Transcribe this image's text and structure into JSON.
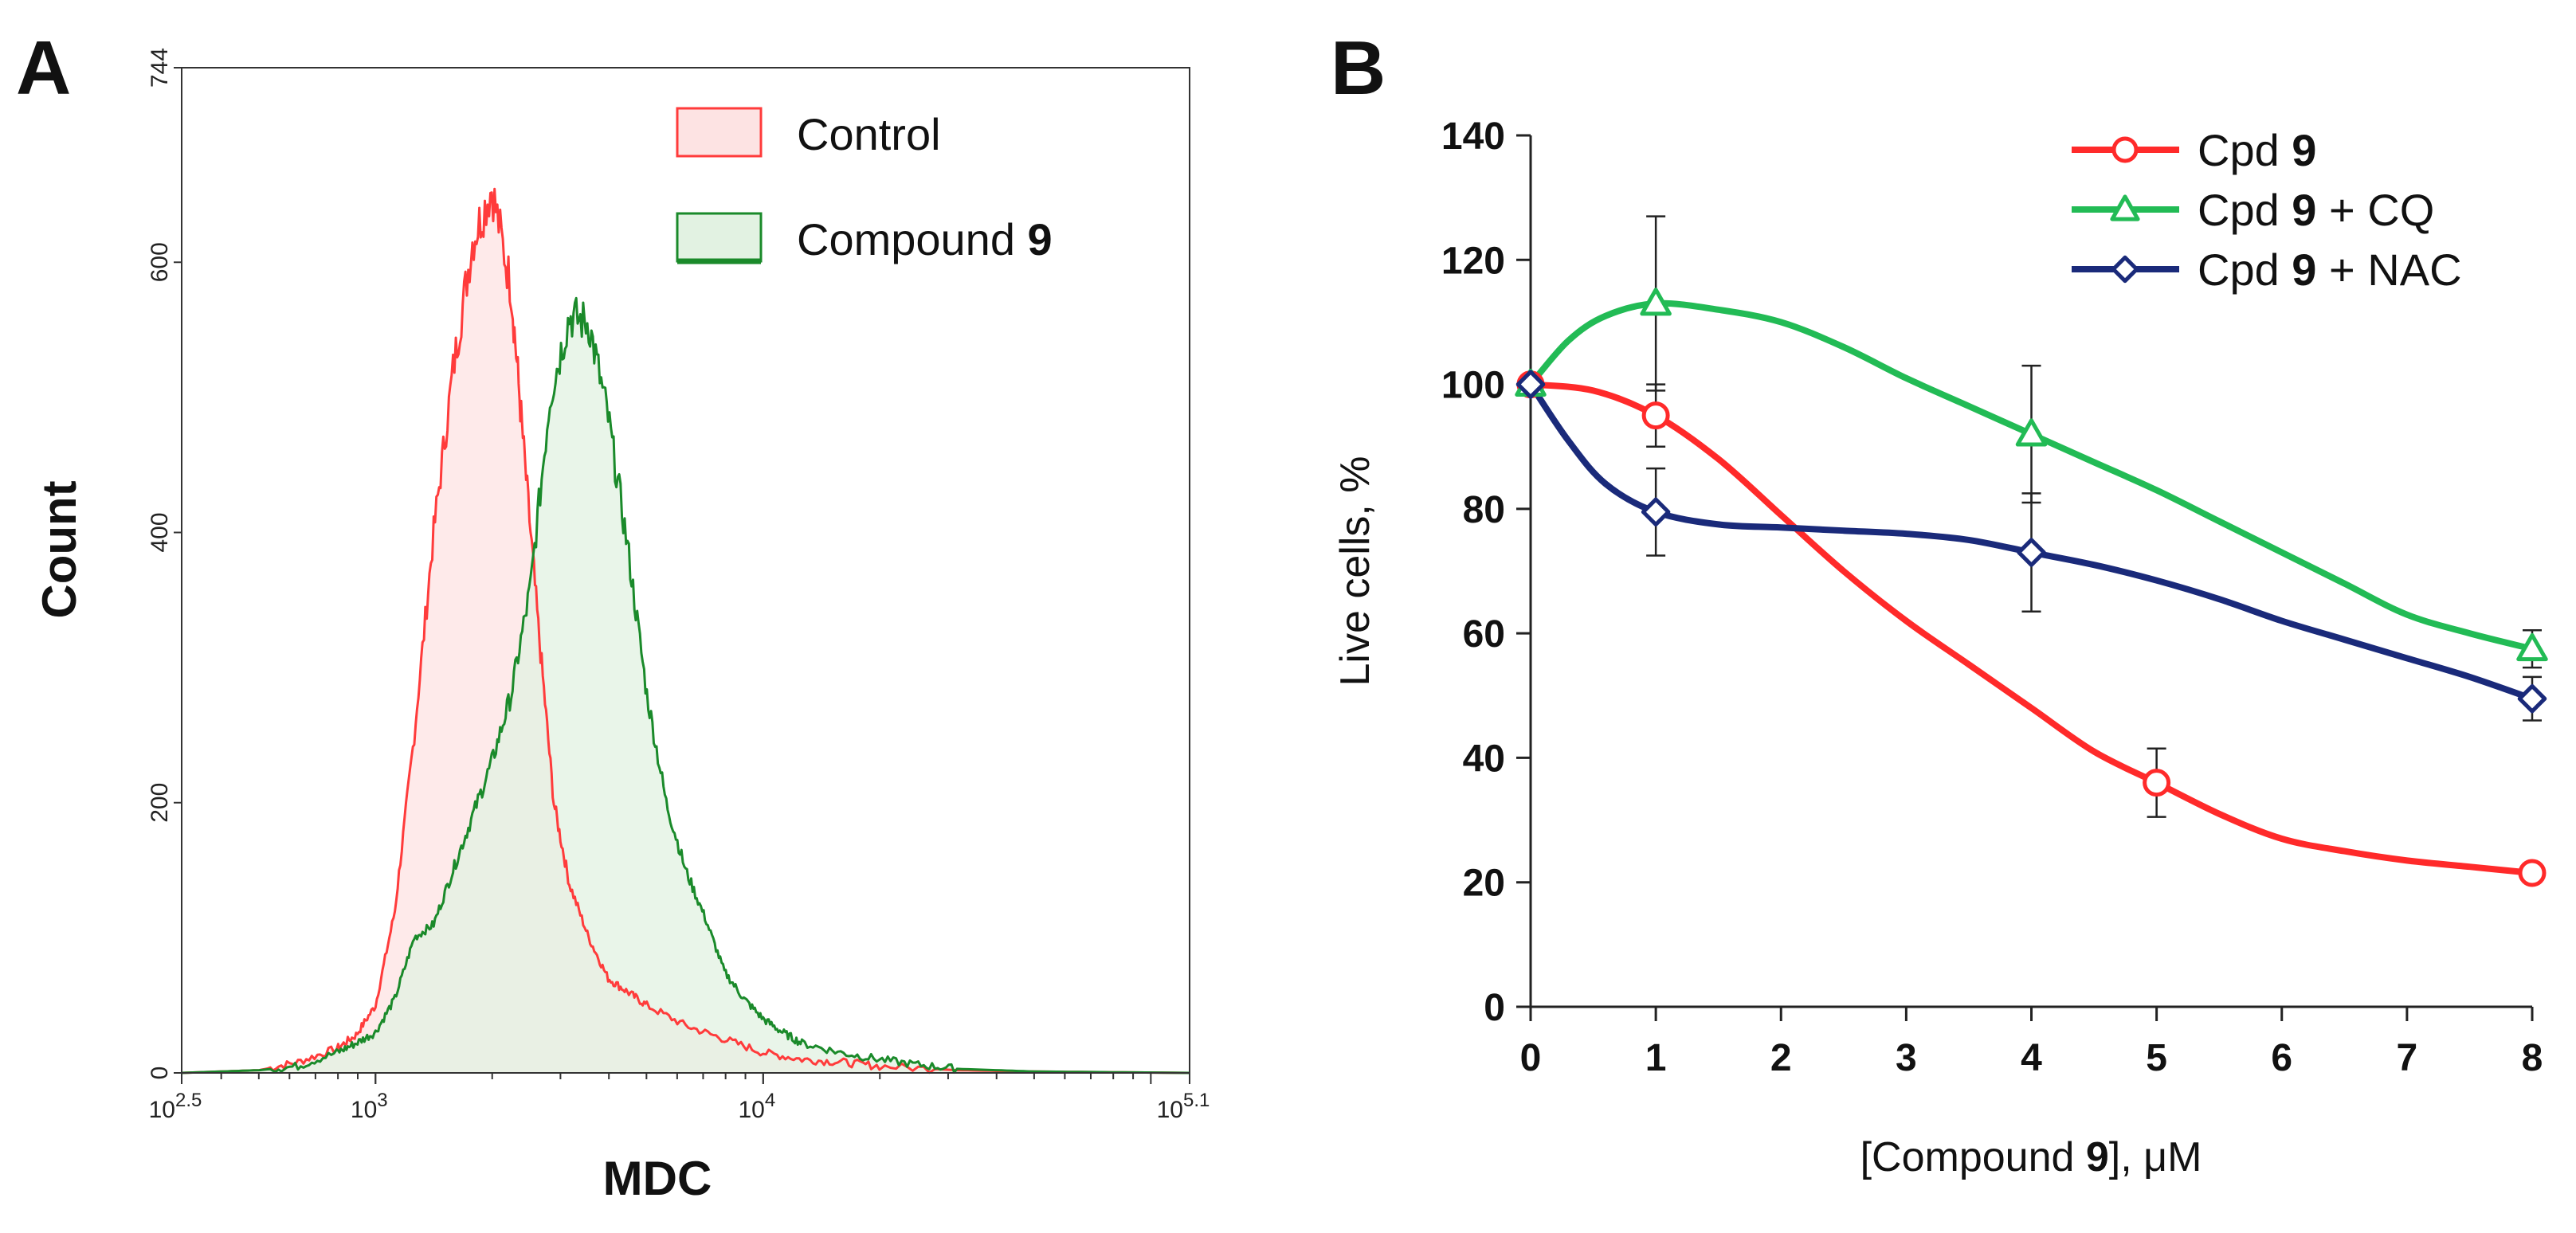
{
  "panels": {
    "a": {
      "letter": "A"
    },
    "b": {
      "letter": "B"
    }
  },
  "chart_data": [
    {
      "id": "A",
      "type": "area",
      "title": "",
      "xlabel": "MDC",
      "ylabel": "Count",
      "xscale": "log10",
      "xlim_log10": [
        2.5,
        5.1
      ],
      "ylim": [
        0,
        744
      ],
      "x_tick_labels": [
        {
          "base": "10",
          "exp": "2.5",
          "log10": 2.5
        },
        {
          "base": "10",
          "exp": "3",
          "log10": 3.0
        },
        {
          "base": "10",
          "exp": "4",
          "log10": 4.0
        },
        {
          "base": "10",
          "exp": "5.1",
          "log10": 5.1
        }
      ],
      "y_ticks": [
        0,
        200,
        400,
        600,
        744
      ],
      "legend": "top-right",
      "series": [
        {
          "name": "Control",
          "color": "#ff3b3b",
          "fill": "#fde3e3",
          "x_log10": [
            2.5,
            2.7,
            2.8,
            2.9,
            2.95,
            3.0,
            3.05,
            3.1,
            3.15,
            3.2,
            3.25,
            3.3,
            3.35,
            3.38,
            3.42,
            3.46,
            3.5,
            3.55,
            3.6,
            3.65,
            3.7,
            3.8,
            3.9,
            4.0,
            4.1,
            4.2,
            4.3,
            4.5,
            4.7,
            5.1
          ],
          "values": [
            0,
            2,
            8,
            18,
            28,
            50,
            120,
            250,
            400,
            520,
            615,
            655,
            580,
            470,
            330,
            200,
            140,
            100,
            70,
            60,
            50,
            35,
            25,
            15,
            10,
            8,
            5,
            2,
            1,
            0
          ]
        },
        {
          "name": "Compound 9",
          "name_parts": [
            "Compound ",
            "9"
          ],
          "color": "#1a8a2a",
          "fill": "#e2f2e2",
          "x_log10": [
            2.5,
            2.7,
            2.8,
            2.9,
            2.95,
            3.0,
            3.05,
            3.1,
            3.15,
            3.2,
            3.25,
            3.3,
            3.35,
            3.4,
            3.45,
            3.5,
            3.55,
            3.6,
            3.65,
            3.7,
            3.75,
            3.8,
            3.85,
            3.9,
            3.95,
            4.0,
            4.05,
            4.1,
            4.2,
            4.3,
            4.4,
            4.5,
            4.7,
            5.1
          ],
          "values": [
            0,
            2,
            5,
            15,
            22,
            30,
            55,
            100,
            110,
            150,
            190,
            230,
            280,
            360,
            500,
            560,
            555,
            485,
            390,
            280,
            200,
            150,
            115,
            75,
            55,
            40,
            30,
            22,
            15,
            10,
            6,
            3,
            1,
            0
          ]
        }
      ]
    },
    {
      "id": "B",
      "type": "line",
      "title": "",
      "xlabel_parts": [
        "[Compound ",
        "9",
        "], μM"
      ],
      "ylabel": "Live cells, %",
      "xlim": [
        0,
        8
      ],
      "ylim": [
        0,
        140
      ],
      "x_ticks": [
        0,
        1,
        2,
        3,
        4,
        5,
        6,
        7,
        8
      ],
      "y_ticks": [
        0,
        20,
        40,
        60,
        80,
        100,
        120,
        140
      ],
      "legend": "top-right",
      "series": [
        {
          "name": "Cpd 9",
          "name_parts": [
            "Cpd ",
            "9",
            ""
          ],
          "color": "#ff2a2a",
          "marker": "circle",
          "x": [
            0,
            1,
            5,
            8
          ],
          "values": [
            100,
            95,
            36,
            21.5
          ],
          "errors": [
            0,
            5,
            5.5,
            0
          ],
          "curve_x": [
            0,
            0.5,
            1,
            1.5,
            2,
            2.5,
            3,
            3.5,
            4,
            4.5,
            5,
            5.5,
            6,
            6.5,
            7,
            7.5,
            8
          ],
          "curve_y": [
            100,
            99,
            95,
            88,
            79,
            70,
            62,
            55,
            48,
            41,
            36,
            31,
            27,
            25,
            23.5,
            22.5,
            21.5
          ]
        },
        {
          "name": "Cpd 9 + CQ",
          "name_parts": [
            "Cpd ",
            "9",
            " + CQ"
          ],
          "color": "#22bb55",
          "marker": "triangle",
          "x": [
            0,
            1,
            4,
            8
          ],
          "values": [
            100,
            113,
            92,
            57.5
          ],
          "errors": [
            0,
            14,
            11,
            3
          ],
          "curve_x": [
            0,
            0.3,
            0.6,
            1,
            1.5,
            2,
            2.5,
            3,
            3.5,
            4,
            4.5,
            5,
            5.5,
            6,
            6.5,
            7,
            7.5,
            8
          ],
          "curve_y": [
            100,
            107,
            111,
            113,
            112,
            110,
            106,
            101,
            96.5,
            92,
            87.5,
            83,
            78,
            73,
            68,
            63,
            60,
            57.5
          ]
        },
        {
          "name": "Cpd 9 + NAC",
          "name_parts": [
            "Cpd ",
            "9",
            " + NAC"
          ],
          "color": "#1a2a7a",
          "marker": "diamond",
          "x": [
            0,
            1,
            4,
            8
          ],
          "values": [
            100,
            79.5,
            73,
            49.5
          ],
          "errors": [
            0,
            7,
            9.5,
            3.5
          ],
          "curve_x": [
            0,
            0.3,
            0.6,
            1,
            1.5,
            2,
            2.5,
            3,
            3.5,
            4,
            4.5,
            5,
            5.5,
            6,
            6.5,
            7,
            7.5,
            8
          ],
          "curve_y": [
            100,
            91,
            84,
            79.5,
            77.5,
            77,
            76.5,
            76,
            75,
            73,
            71,
            68.5,
            65.5,
            62,
            59,
            56,
            53,
            49.5
          ]
        }
      ]
    }
  ]
}
